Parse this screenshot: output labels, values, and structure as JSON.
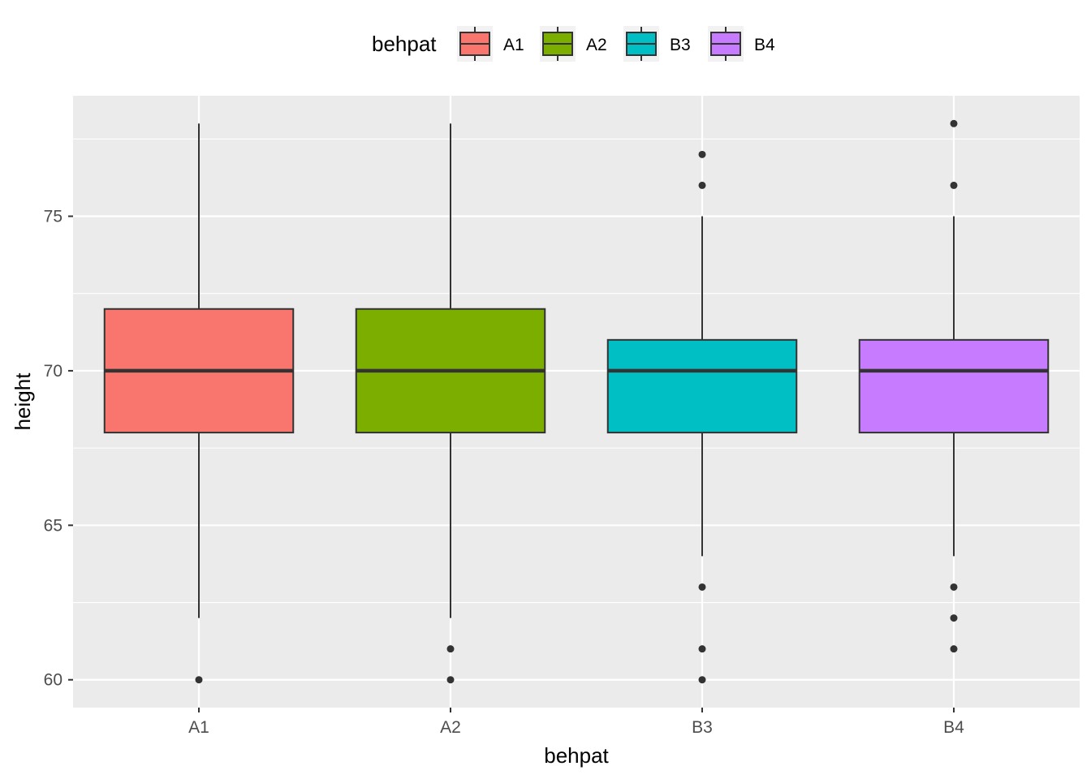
{
  "chart_data": {
    "type": "boxplot",
    "xlabel": "behpat",
    "ylabel": "height",
    "ylim": [
      59.1,
      78.9
    ],
    "yticks": [
      60,
      65,
      70,
      75
    ],
    "grid": true,
    "legend": {
      "title": "behpat",
      "position": "top",
      "entries": [
        "A1",
        "A2",
        "B3",
        "B4"
      ]
    },
    "categories": [
      "A1",
      "A2",
      "B3",
      "B4"
    ],
    "colors": {
      "A1": "#F8766D",
      "A2": "#7CAE00",
      "B3": "#00BFC4",
      "B4": "#C77CFF",
      "panel": "#EBEBEB",
      "grid": "#FFFFFF",
      "line": "#333333"
    },
    "boxes": [
      {
        "name": "A1",
        "lower_whisker": 62,
        "q1": 68,
        "median": 70,
        "q3": 72,
        "upper_whisker": 78,
        "outliers": [
          60
        ]
      },
      {
        "name": "A2",
        "lower_whisker": 62,
        "q1": 68,
        "median": 70,
        "q3": 72,
        "upper_whisker": 78,
        "outliers": [
          61,
          60
        ]
      },
      {
        "name": "B3",
        "lower_whisker": 64,
        "q1": 68,
        "median": 70,
        "q3": 71,
        "upper_whisker": 75,
        "outliers": [
          77,
          76,
          63,
          61,
          60
        ]
      },
      {
        "name": "B4",
        "lower_whisker": 64,
        "q1": 68,
        "median": 70,
        "q3": 71,
        "upper_whisker": 75,
        "outliers": [
          78,
          76,
          63,
          62,
          61
        ]
      }
    ]
  }
}
